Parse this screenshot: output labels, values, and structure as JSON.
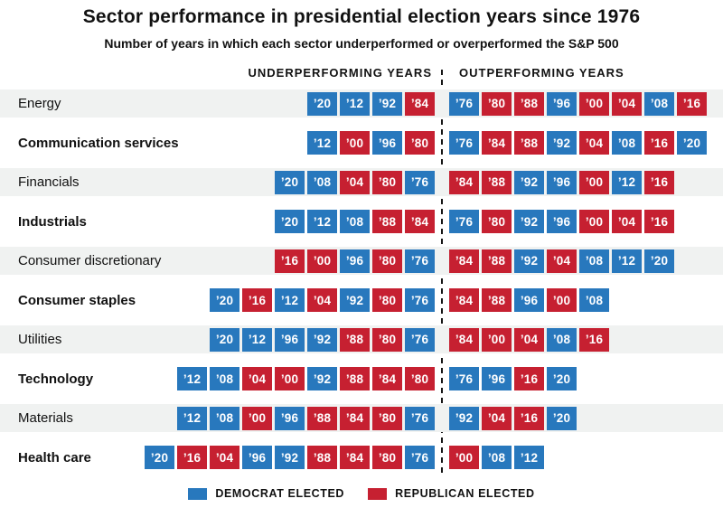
{
  "header": {
    "title": "Sector performance in presidential election years since 1976",
    "subtitle": "Number of years in which each sector underperformed or overperformed the S&P 500"
  },
  "columns": {
    "under_label": "UNDERPERFORMING YEARS",
    "out_label": "OUTPERFORMING YEARS"
  },
  "colors": {
    "democrat_blue": "#2878bd",
    "republican_red": "#c62031",
    "row_stripe": "#f0f2f1"
  },
  "party_by_year": {
    "76": "D",
    "80": "R",
    "84": "R",
    "88": "R",
    "92": "D",
    "96": "D",
    "00": "R",
    "04": "R",
    "08": "D",
    "12": "D",
    "16": "R",
    "20": "D"
  },
  "legend": [
    {
      "label": "DEMOCRAT ELECTED",
      "party": "D"
    },
    {
      "label": "REPUBLICAN ELECTED",
      "party": "R"
    }
  ],
  "chart_data": {
    "type": "table",
    "title": "Sector performance in presidential election years since 1976",
    "subtitle": "Number of years in which each sector underperformed or overperformed the S&P 500",
    "columns": [
      "Sector",
      "Underperforming years",
      "Outperforming years"
    ],
    "color_coding": "chip color = party elected that year (D = blue, R = red)",
    "rows": [
      {
        "sector": "Energy",
        "striped": true,
        "bold": false,
        "under": [
          "’20",
          "’12",
          "’92",
          "’84"
        ],
        "out": [
          "’76",
          "’80",
          "’88",
          "’96",
          "’00",
          "’04",
          "’08",
          "’16"
        ]
      },
      {
        "sector": "Communication services",
        "striped": false,
        "bold": true,
        "under": [
          "’12",
          "’00",
          "’96",
          "’80"
        ],
        "out": [
          "’76",
          "’84",
          "’88",
          "’92",
          "’04",
          "’08",
          "’16",
          "’20"
        ]
      },
      {
        "sector": "Financials",
        "striped": true,
        "bold": false,
        "under": [
          "’20",
          "’08",
          "’04",
          "’80",
          "’76"
        ],
        "out": [
          "’84",
          "’88",
          "’92",
          "’96",
          "’00",
          "’12",
          "’16"
        ]
      },
      {
        "sector": "Industrials",
        "striped": false,
        "bold": true,
        "under": [
          "’20",
          "’12",
          "’08",
          "’88",
          "’84"
        ],
        "out": [
          "’76",
          "’80",
          "’92",
          "’96",
          "’00",
          "’04",
          "’16"
        ]
      },
      {
        "sector": "Consumer discretionary",
        "striped": true,
        "bold": false,
        "under": [
          "’16",
          "’00",
          "’96",
          "’80",
          "’76"
        ],
        "out": [
          "’84",
          "’88",
          "’92",
          "’04",
          "’08",
          "’12",
          "’20"
        ]
      },
      {
        "sector": "Consumer staples",
        "striped": false,
        "bold": true,
        "under": [
          "’20",
          "’16",
          "’12",
          "’04",
          "’92",
          "’80",
          "’76"
        ],
        "out": [
          "’84",
          "’88",
          "’96",
          "’00",
          "’08"
        ]
      },
      {
        "sector": "Utilities",
        "striped": true,
        "bold": false,
        "under": [
          "’20",
          "’12",
          "’96",
          "’92",
          "’88",
          "’80",
          "’76"
        ],
        "out": [
          "’84",
          "’00",
          "’04",
          "’08",
          "’16"
        ]
      },
      {
        "sector": "Technology",
        "striped": false,
        "bold": true,
        "under": [
          "’12",
          "’08",
          "’04",
          "’00",
          "’92",
          "’88",
          "’84",
          "’80"
        ],
        "out": [
          "’76",
          "’96",
          "’16",
          "’20"
        ]
      },
      {
        "sector": "Materials",
        "striped": true,
        "bold": false,
        "under": [
          "’12",
          "’08",
          "’00",
          "’96",
          "’88",
          "’84",
          "’80",
          "’76"
        ],
        "out": [
          "’92",
          "’04",
          "’16",
          "’20"
        ]
      },
      {
        "sector": "Health care",
        "striped": false,
        "bold": true,
        "under": [
          "’20",
          "’16",
          "’04",
          "’96",
          "’92",
          "’88",
          "’84",
          "’80",
          "’76"
        ],
        "out": [
          "’00",
          "’08",
          "’12"
        ]
      }
    ]
  }
}
